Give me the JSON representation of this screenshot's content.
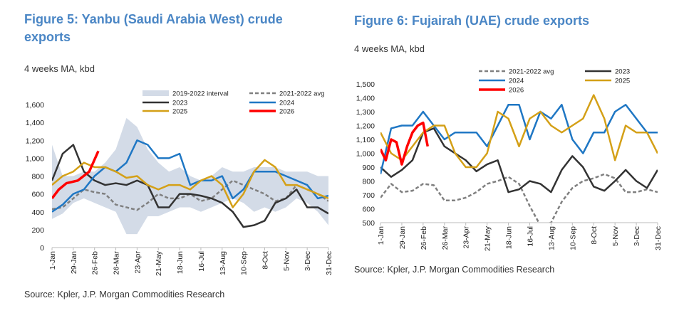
{
  "chart_data": [
    {
      "type": "line",
      "title": "Figure 5: Yanbu (Saudi Arabia West) crude exports",
      "subtitle": "4 weeks MA, kbd",
      "source": "Source: Kpler, J.P. Morgan Commodities Research",
      "ylim": [
        0,
        1600
      ],
      "yticks": [
        0,
        200,
        400,
        600,
        800,
        1000,
        1200,
        1400,
        1600
      ],
      "ytick_labels": [
        "0",
        "200",
        "400",
        "600",
        "800",
        "1,000",
        "1,200",
        "1,400",
        "1,600"
      ],
      "xtick_labels": [
        "1-Jan",
        "29-Jan",
        "26-Feb",
        "26-Mar",
        "23-Apr",
        "21-May",
        "18-Jun",
        "16-Jul",
        "13-Aug",
        "10-Sep",
        "8-Oct",
        "5-Nov",
        "3-Dec",
        "31-Dec"
      ],
      "xtick_days": [
        1,
        29,
        57,
        85,
        113,
        141,
        169,
        197,
        225,
        253,
        281,
        309,
        337,
        365
      ],
      "x_days": [
        1,
        15,
        29,
        43,
        57,
        71,
        85,
        99,
        113,
        127,
        141,
        155,
        169,
        183,
        197,
        211,
        225,
        239,
        253,
        267,
        281,
        295,
        309,
        323,
        337,
        351,
        365
      ],
      "grid": false,
      "band": {
        "name": "2019-2022 interval",
        "color": "#d3dbe7",
        "lower": [
          320,
          380,
          500,
          550,
          500,
          450,
          400,
          150,
          150,
          350,
          350,
          400,
          450,
          450,
          400,
          450,
          500,
          550,
          500,
          400,
          450,
          400,
          450,
          550,
          500,
          400,
          250
        ],
        "upper": [
          1150,
          800,
          800,
          850,
          850,
          950,
          1100,
          1450,
          1350,
          1100,
          950,
          850,
          900,
          800,
          750,
          800,
          900,
          850,
          850,
          900,
          900,
          900,
          850,
          850,
          850,
          800,
          800
        ]
      },
      "series": [
        {
          "name": "2021-2022 avg",
          "color": "#808080",
          "dashed": true,
          "values": [
            430,
            450,
            550,
            650,
            620,
            600,
            480,
            450,
            420,
            500,
            600,
            550,
            550,
            600,
            520,
            550,
            650,
            750,
            700,
            650,
            600,
            520,
            550,
            700,
            650,
            600,
            520
          ]
        },
        {
          "name": "2023",
          "color": "#333333",
          "values": [
            750,
            1050,
            1150,
            850,
            750,
            700,
            720,
            700,
            750,
            700,
            450,
            450,
            600,
            600,
            580,
            550,
            500,
            400,
            230,
            250,
            300,
            500,
            550,
            650,
            450,
            450,
            380
          ]
        },
        {
          "name": "2024",
          "color": "#1f77c4",
          "values": [
            400,
            480,
            600,
            650,
            800,
            900,
            850,
            950,
            1200,
            1150,
            1000,
            1000,
            1050,
            700,
            750,
            750,
            800,
            550,
            650,
            850,
            850,
            850,
            800,
            750,
            700,
            550,
            580
          ]
        },
        {
          "name": "2025",
          "color": "#d4a017",
          "values": [
            700,
            800,
            850,
            950,
            900,
            900,
            850,
            780,
            800,
            700,
            650,
            700,
            700,
            650,
            750,
            800,
            700,
            450,
            600,
            850,
            980,
            900,
            700,
            700,
            650,
            600,
            550
          ]
        },
        {
          "name": "2026",
          "color": "#ff0000",
          "x": [
            1,
            10,
            20,
            35,
            50,
            62
          ],
          "values": [
            550,
            650,
            720,
            750,
            850,
            1080
          ]
        }
      ]
    },
    {
      "type": "line",
      "title": "Figure 6: Fujairah (UAE) crude exports",
      "subtitle": "4 weeks MA, kbd",
      "source": "Source: Kpler, J.P. Morgan Commodities Research",
      "ylim": [
        500,
        1500
      ],
      "yticks": [
        500,
        600,
        700,
        800,
        900,
        1000,
        1100,
        1200,
        1300,
        1400,
        1500
      ],
      "ytick_labels": [
        "500",
        "600",
        "700",
        "800",
        "900",
        "1,000",
        "1,100",
        "1,200",
        "1,300",
        "1,400",
        "1,500"
      ],
      "xtick_labels": [
        "1-Jan",
        "29-Jan",
        "26-Feb",
        "26-Mar",
        "23-Apr",
        "21-May",
        "18-Jun",
        "16-Jul",
        "13-Aug",
        "10-Sep",
        "8-Oct",
        "5-Nov",
        "3-Dec",
        "31-Dec"
      ],
      "xtick_days": [
        1,
        29,
        57,
        85,
        113,
        141,
        169,
        197,
        225,
        253,
        281,
        309,
        337,
        365
      ],
      "x_days": [
        1,
        15,
        29,
        43,
        57,
        71,
        85,
        99,
        113,
        127,
        141,
        155,
        169,
        183,
        197,
        211,
        225,
        239,
        253,
        267,
        281,
        295,
        309,
        323,
        337,
        351,
        365
      ],
      "grid": false,
      "series": [
        {
          "name": "2021-2022 avg",
          "color": "#808080",
          "dashed": true,
          "values": [
            680,
            780,
            720,
            730,
            780,
            770,
            660,
            660,
            680,
            720,
            780,
            800,
            830,
            780,
            620,
            480,
            500,
            650,
            750,
            800,
            820,
            850,
            820,
            720,
            720,
            740,
            720
          ]
        },
        {
          "name": "2023",
          "color": "#333333",
          "values": [
            900,
            830,
            880,
            950,
            1150,
            1180,
            1050,
            1000,
            950,
            870,
            920,
            950,
            720,
            740,
            800,
            780,
            720,
            880,
            980,
            900,
            760,
            730,
            800,
            880,
            800,
            750,
            880
          ]
        },
        {
          "name": "2024",
          "color": "#1f77c4",
          "values": [
            850,
            1180,
            1200,
            1200,
            1300,
            1200,
            1100,
            1150,
            1150,
            1150,
            1050,
            1200,
            1350,
            1350,
            1100,
            1300,
            1250,
            1350,
            1100,
            1000,
            1150,
            1150,
            1300,
            1350,
            1250,
            1150,
            1150
          ]
        },
        {
          "name": "2025",
          "color": "#d4a017",
          "values": [
            1150,
            1000,
            950,
            1050,
            1150,
            1200,
            1200,
            1000,
            900,
            900,
            1000,
            1300,
            1250,
            1050,
            1250,
            1300,
            1200,
            1150,
            1200,
            1250,
            1420,
            1250,
            950,
            1200,
            1150,
            1150,
            1000
          ]
        },
        {
          "name": "2026",
          "color": "#ff0000",
          "x": [
            1,
            8,
            15,
            22,
            29,
            36,
            43,
            50,
            57,
            63
          ],
          "values": [
            1030,
            950,
            1100,
            1080,
            920,
            1050,
            1150,
            1200,
            1220,
            1050
          ]
        }
      ]
    }
  ]
}
